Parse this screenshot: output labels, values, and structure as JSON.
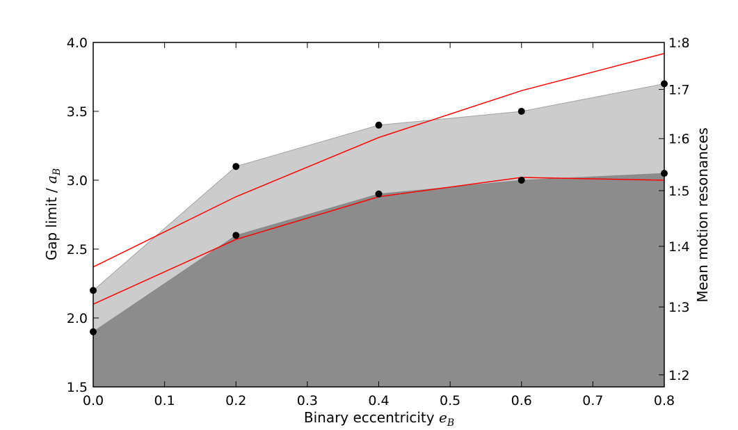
{
  "chart_data": {
    "type": "area",
    "xlabel": "Binary eccentricity",
    "xlabel_symbol": "e",
    "xlabel_subscript": "B",
    "ylabel": "Gap limit /",
    "ylabel_symbol": "a",
    "ylabel_subscript": "B",
    "y2label": "Mean motion resonances",
    "xlim": [
      0.0,
      0.8
    ],
    "ylim": [
      1.5,
      4.0
    ],
    "x_ticks": [
      {
        "value": 0.0,
        "label": "0.0"
      },
      {
        "value": 0.1,
        "label": "0.1"
      },
      {
        "value": 0.2,
        "label": "0.2"
      },
      {
        "value": 0.3,
        "label": "0.3"
      },
      {
        "value": 0.4,
        "label": "0.4"
      },
      {
        "value": 0.5,
        "label": "0.5"
      },
      {
        "value": 0.6,
        "label": "0.6"
      },
      {
        "value": 0.7,
        "label": "0.7"
      },
      {
        "value": 0.8,
        "label": "0.8"
      }
    ],
    "y_ticks": [
      {
        "value": 1.5,
        "label": "1.5"
      },
      {
        "value": 2.0,
        "label": "2.0"
      },
      {
        "value": 2.5,
        "label": "2.5"
      },
      {
        "value": 3.0,
        "label": "3.0"
      },
      {
        "value": 3.5,
        "label": "3.5"
      },
      {
        "value": 4.0,
        "label": "4.0"
      }
    ],
    "y2_ticks": [
      {
        "value": 1.587,
        "label": "1:2"
      },
      {
        "value": 2.08,
        "label": "1:3"
      },
      {
        "value": 2.52,
        "label": "1:4"
      },
      {
        "value": 2.924,
        "label": "1:5"
      },
      {
        "value": 3.302,
        "label": "1:6"
      },
      {
        "value": 3.659,
        "label": "1:7"
      },
      {
        "value": 4.0,
        "label": "1:8"
      }
    ],
    "x": [
      0.0,
      0.2,
      0.4,
      0.6,
      0.8
    ],
    "series": [
      {
        "fill": "#8c8c8c",
        "marker_color": "#000000",
        "values": [
          1.9,
          2.6,
          2.9,
          3.0,
          3.05
        ]
      },
      {
        "fill": "#cccccc",
        "marker_color": "#000000",
        "values": [
          2.2,
          3.1,
          3.4,
          3.5,
          3.7
        ]
      }
    ],
    "lines": [
      {
        "color": "#ff0000",
        "values": [
          2.1,
          2.57,
          2.88,
          3.02,
          3.0
        ]
      },
      {
        "color": "#ff0000",
        "values": [
          2.37,
          2.88,
          3.31,
          3.65,
          3.92
        ]
      }
    ],
    "grid": false
  }
}
